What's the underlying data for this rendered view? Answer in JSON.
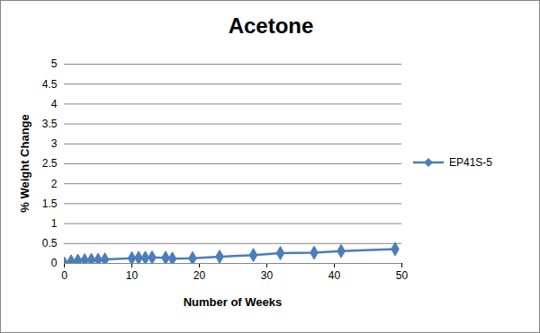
{
  "chart_data": {
    "type": "line",
    "title": "Acetone",
    "x_label": "Number of Weeks",
    "y_label": "% Weight Change",
    "x": [
      0,
      1,
      2,
      3,
      4,
      5,
      6,
      10,
      11,
      12,
      13,
      15,
      16,
      19,
      23,
      28,
      32,
      37,
      41,
      49
    ],
    "series": [
      {
        "name": "EP41S-5",
        "color": "#4a7ebb",
        "marker": "diamond",
        "values": [
          0,
          0.05,
          0.07,
          0.08,
          0.09,
          0.09,
          0.1,
          0.13,
          0.14,
          0.14,
          0.15,
          0.14,
          0.12,
          0.13,
          0.17,
          0.21,
          0.26,
          0.27,
          0.31,
          0.36
        ]
      }
    ],
    "xlim": [
      0,
      50
    ],
    "xticks": [
      0,
      10,
      20,
      30,
      40,
      50
    ],
    "ylim": [
      0,
      5
    ],
    "yticks": [
      0,
      0.5,
      1,
      1.5,
      2,
      2.5,
      3,
      3.5,
      4,
      4.5,
      5
    ],
    "grid": true,
    "legend": "right"
  }
}
